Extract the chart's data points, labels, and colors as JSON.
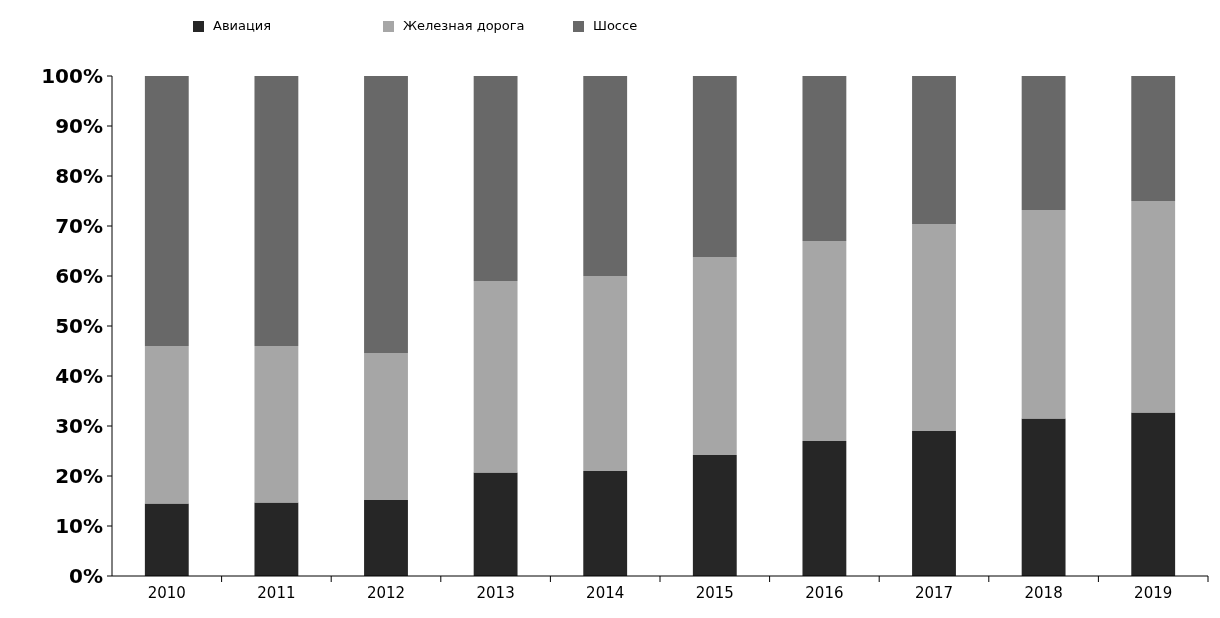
{
  "chart_data": {
    "type": "bar",
    "stacked": true,
    "categories": [
      "2010",
      "2011",
      "2012",
      "2013",
      "2014",
      "2015",
      "2016",
      "2017",
      "2018",
      "2019"
    ],
    "series": [
      {
        "name": "Авиация",
        "color": "#262626",
        "values": [
          14.5,
          14.7,
          15.2,
          20.7,
          21,
          24.2,
          27,
          29,
          31.5,
          32.7
        ]
      },
      {
        "name": "Железная дорога",
        "color": "#a6a6a6",
        "values": [
          31.5,
          31.3,
          29.4,
          38.3,
          39,
          39.6,
          40,
          41.4,
          41.7,
          42.3
        ]
      },
      {
        "name": "Шоссе",
        "color": "#686868",
        "values": [
          54,
          54,
          55.4,
          41,
          40,
          36.2,
          33,
          29.6,
          26.8,
          25
        ]
      }
    ],
    "ylim": [
      0,
      100
    ],
    "yticks": [
      {
        "value": 0,
        "label": "0%"
      },
      {
        "value": 10,
        "label": "10%"
      },
      {
        "value": 20,
        "label": "20%"
      },
      {
        "value": 30,
        "label": "30%"
      },
      {
        "value": 40,
        "label": "40%"
      },
      {
        "value": 50,
        "label": "50%"
      },
      {
        "value": 60,
        "label": "60%"
      },
      {
        "value": 70,
        "label": "70%"
      },
      {
        "value": 80,
        "label": "80%"
      },
      {
        "value": 90,
        "label": "90%"
      },
      {
        "value": 100,
        "label": "100%"
      }
    ],
    "legend": "top",
    "grid": false
  }
}
